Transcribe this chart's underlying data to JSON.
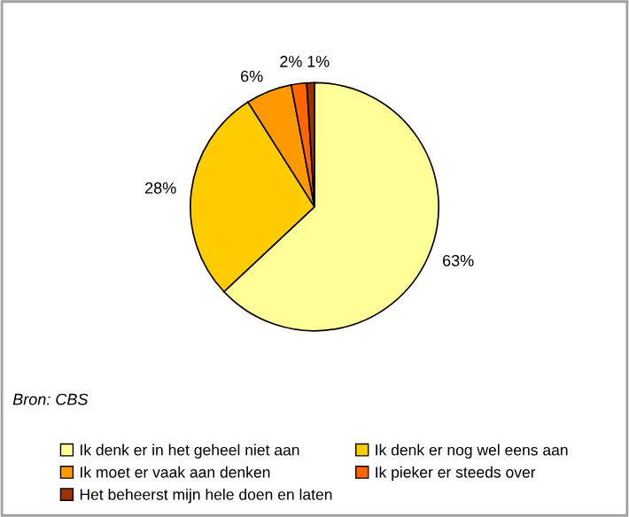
{
  "chart_data": {
    "type": "pie",
    "categories": [
      "Ik denk er in het geheel niet aan",
      "Ik denk er nog wel eens aan",
      "Ik moet er vaak aan denken",
      "Ik pieker er steeds over",
      "Het beheerst mijn hele doen en laten"
    ],
    "values": [
      63,
      28,
      6,
      2,
      1
    ],
    "value_labels": [
      "63%",
      "28%",
      "6%",
      "2%",
      "1%"
    ],
    "colors": [
      "#ffff99",
      "#ffcc00",
      "#ff9900",
      "#ff6600",
      "#993300"
    ],
    "annotations": [
      "Bron: CBS"
    ],
    "legend": "bottom"
  }
}
